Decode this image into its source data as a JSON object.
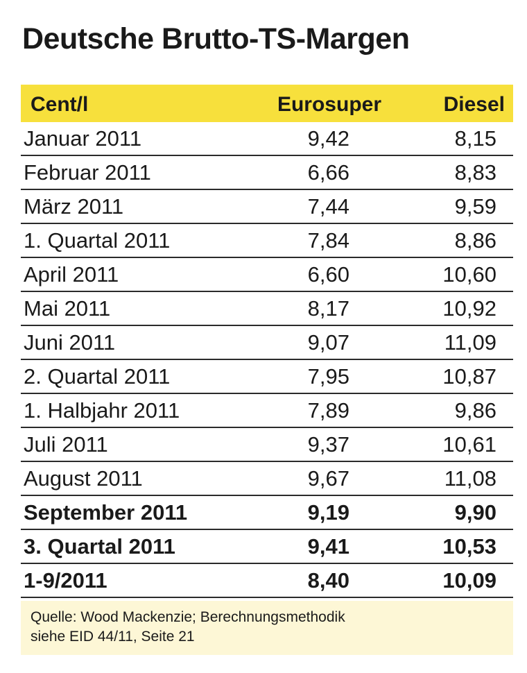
{
  "title": "Deutsche Brutto-TS-Margen",
  "table": {
    "header": [
      "Cent/l",
      "Eurosuper",
      "Diesel"
    ],
    "rows": [
      [
        "Januar 2011",
        "9,42",
        "8,15"
      ],
      [
        "Februar 2011",
        "6,66",
        "8,83"
      ],
      [
        "März 2011",
        "7,44",
        "9,59"
      ],
      [
        "1. Quartal 2011",
        "7,84",
        "8,86"
      ],
      [
        "April 2011",
        "6,60",
        "10,60"
      ],
      [
        "Mai 2011",
        "8,17",
        "10,92"
      ],
      [
        "Juni 2011",
        "9,07",
        "11,09"
      ],
      [
        "2. Quartal 2011",
        "7,95",
        "10,87"
      ],
      [
        "1. Halbjahr 2011",
        "7,89",
        "9,86"
      ],
      [
        "Juli 2011",
        "9,37",
        "10,61"
      ],
      [
        "August 2011",
        "9,67",
        "11,08"
      ],
      [
        "September 2011",
        "9,19",
        "9,90"
      ],
      [
        "3. Quartal 2011",
        "9,41",
        "10,53"
      ],
      [
        "1-9/2011",
        "8,40",
        "10,09"
      ]
    ]
  },
  "source": [
    "Quelle: Wood Mackenzie; Berechnungsmethodik",
    "siehe EID 44/11, Seite 21"
  ]
}
